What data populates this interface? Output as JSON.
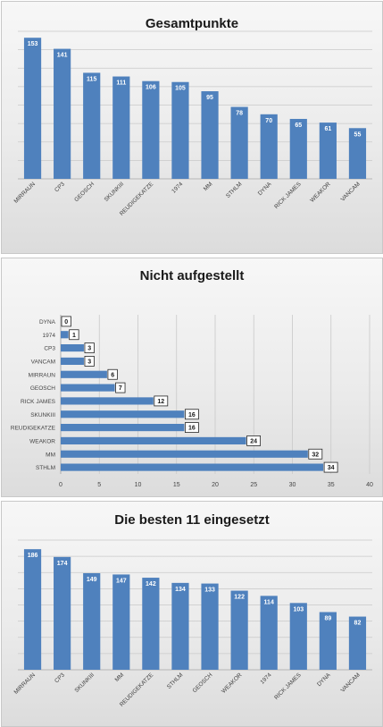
{
  "chart_data": [
    {
      "type": "bar",
      "orientation": "vertical",
      "title": "Gesamtpunkte",
      "categories": [
        "MIRRAUN",
        "CP3",
        "GEOSCH",
        "SKUNKIII",
        "REUDIGEKATZE",
        "1974",
        "MM",
        "STHLM",
        "DYNA",
        "RICK JAMES",
        "WEAKOR",
        "VANCAM"
      ],
      "values": [
        153,
        141,
        115,
        111,
        106,
        105,
        95,
        78,
        70,
        65,
        61,
        55
      ],
      "ylim": [
        0,
        160
      ],
      "grid": true,
      "data_labels": "inside",
      "bar_color": "#4f81bd"
    },
    {
      "type": "bar",
      "orientation": "horizontal",
      "title": "Nicht aufgestellt",
      "categories": [
        "DYNA",
        "1974",
        "CP3",
        "VANCAM",
        "MIRRAUN",
        "GEOSCH",
        "RICK JAMES",
        "SKUNKIII",
        "REUDIGEKATZE",
        "WEAKOR",
        "MM",
        "STHLM"
      ],
      "values": [
        0,
        1,
        3,
        3,
        6,
        7,
        12,
        16,
        16,
        24,
        32,
        34
      ],
      "xlim": [
        0,
        40
      ],
      "xticks": [
        "0",
        "5",
        "10",
        "15",
        "20",
        "25",
        "30",
        "35",
        "40"
      ],
      "grid": true,
      "data_labels": "boxed-outside",
      "bar_color": "#4f81bd"
    },
    {
      "type": "bar",
      "orientation": "vertical",
      "title": "Die besten 11 eingesetzt",
      "categories": [
        "MIRRAUN",
        "CP3",
        "SKUNKIII",
        "MM",
        "REUDIGEKATZE",
        "STHLM",
        "GEOSCH",
        "WEAKOR",
        "1974",
        "RICK JAMES",
        "DYNA",
        "VANCAM"
      ],
      "values": [
        186,
        174,
        149,
        147,
        142,
        134,
        133,
        122,
        114,
        103,
        89,
        82
      ],
      "ylim": [
        0,
        200
      ],
      "grid": true,
      "data_labels": "inside",
      "bar_color": "#4f81bd"
    }
  ]
}
